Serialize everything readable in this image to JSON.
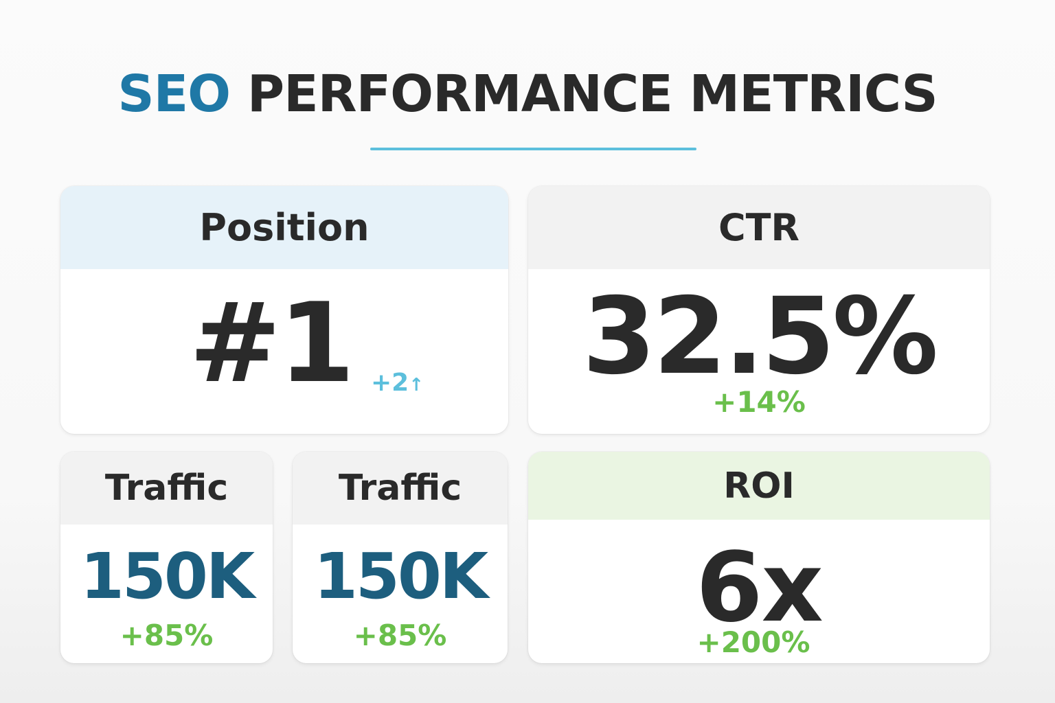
{
  "title": {
    "accent": "SEO",
    "rest": "PERFORMANCE METRICS"
  },
  "colors": {
    "accent_blue": "#1f78a6",
    "divider": "#5cbfdc",
    "positive_green": "#6abf4b",
    "traffic_blue": "#1d5e7e",
    "text_dark": "#2a2a2a"
  },
  "cards": {
    "position": {
      "label": "Position",
      "value": "#1",
      "change": "+2",
      "change_icon": "arrow-up-icon"
    },
    "ctr": {
      "label": "CTR",
      "value": "32.5%",
      "change": "+14%"
    },
    "traffic_1": {
      "label": "Traffic",
      "value": "150K",
      "change": "+85%"
    },
    "traffic_2": {
      "label": "Traffic",
      "value": "150K",
      "change": "+85%"
    },
    "roi": {
      "label": "ROI",
      "value": "6x",
      "change": "+200%"
    }
  }
}
